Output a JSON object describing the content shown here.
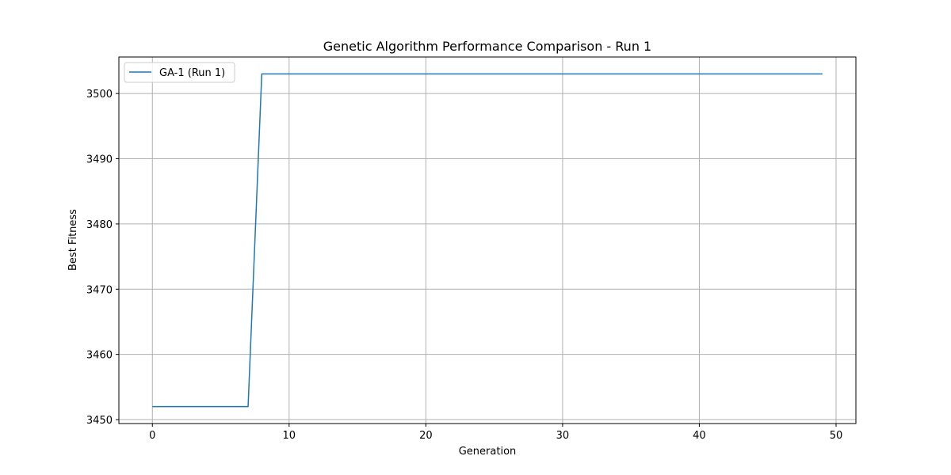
{
  "chart_data": {
    "type": "line",
    "title": "Genetic Algorithm Performance Comparison - Run 1",
    "xlabel": "Generation",
    "ylabel": "Best Fitness",
    "xlim": [
      -2.45,
      51.45
    ],
    "ylim": [
      3449.4,
      3505.6
    ],
    "xticks": [
      0,
      10,
      20,
      30,
      40,
      50
    ],
    "yticks": [
      3450,
      3460,
      3470,
      3480,
      3490,
      3500
    ],
    "grid": true,
    "legend_position": "upper left",
    "series": [
      {
        "name": "GA-1 (Run 1)",
        "color": "#1f77b4",
        "x": [
          0,
          1,
          2,
          3,
          4,
          5,
          6,
          7,
          8,
          9,
          10,
          11,
          12,
          13,
          14,
          15,
          16,
          17,
          18,
          19,
          20,
          21,
          22,
          23,
          24,
          25,
          26,
          27,
          28,
          29,
          30,
          31,
          32,
          33,
          34,
          35,
          36,
          37,
          38,
          39,
          40,
          41,
          42,
          43,
          44,
          45,
          46,
          47,
          48,
          49
        ],
        "y": [
          3452,
          3452,
          3452,
          3452,
          3452,
          3452,
          3452,
          3452,
          3503,
          3503,
          3503,
          3503,
          3503,
          3503,
          3503,
          3503,
          3503,
          3503,
          3503,
          3503,
          3503,
          3503,
          3503,
          3503,
          3503,
          3503,
          3503,
          3503,
          3503,
          3503,
          3503,
          3503,
          3503,
          3503,
          3503,
          3503,
          3503,
          3503,
          3503,
          3503,
          3503,
          3503,
          3503,
          3503,
          3503,
          3503,
          3503,
          3503,
          3503,
          3503
        ]
      }
    ]
  }
}
